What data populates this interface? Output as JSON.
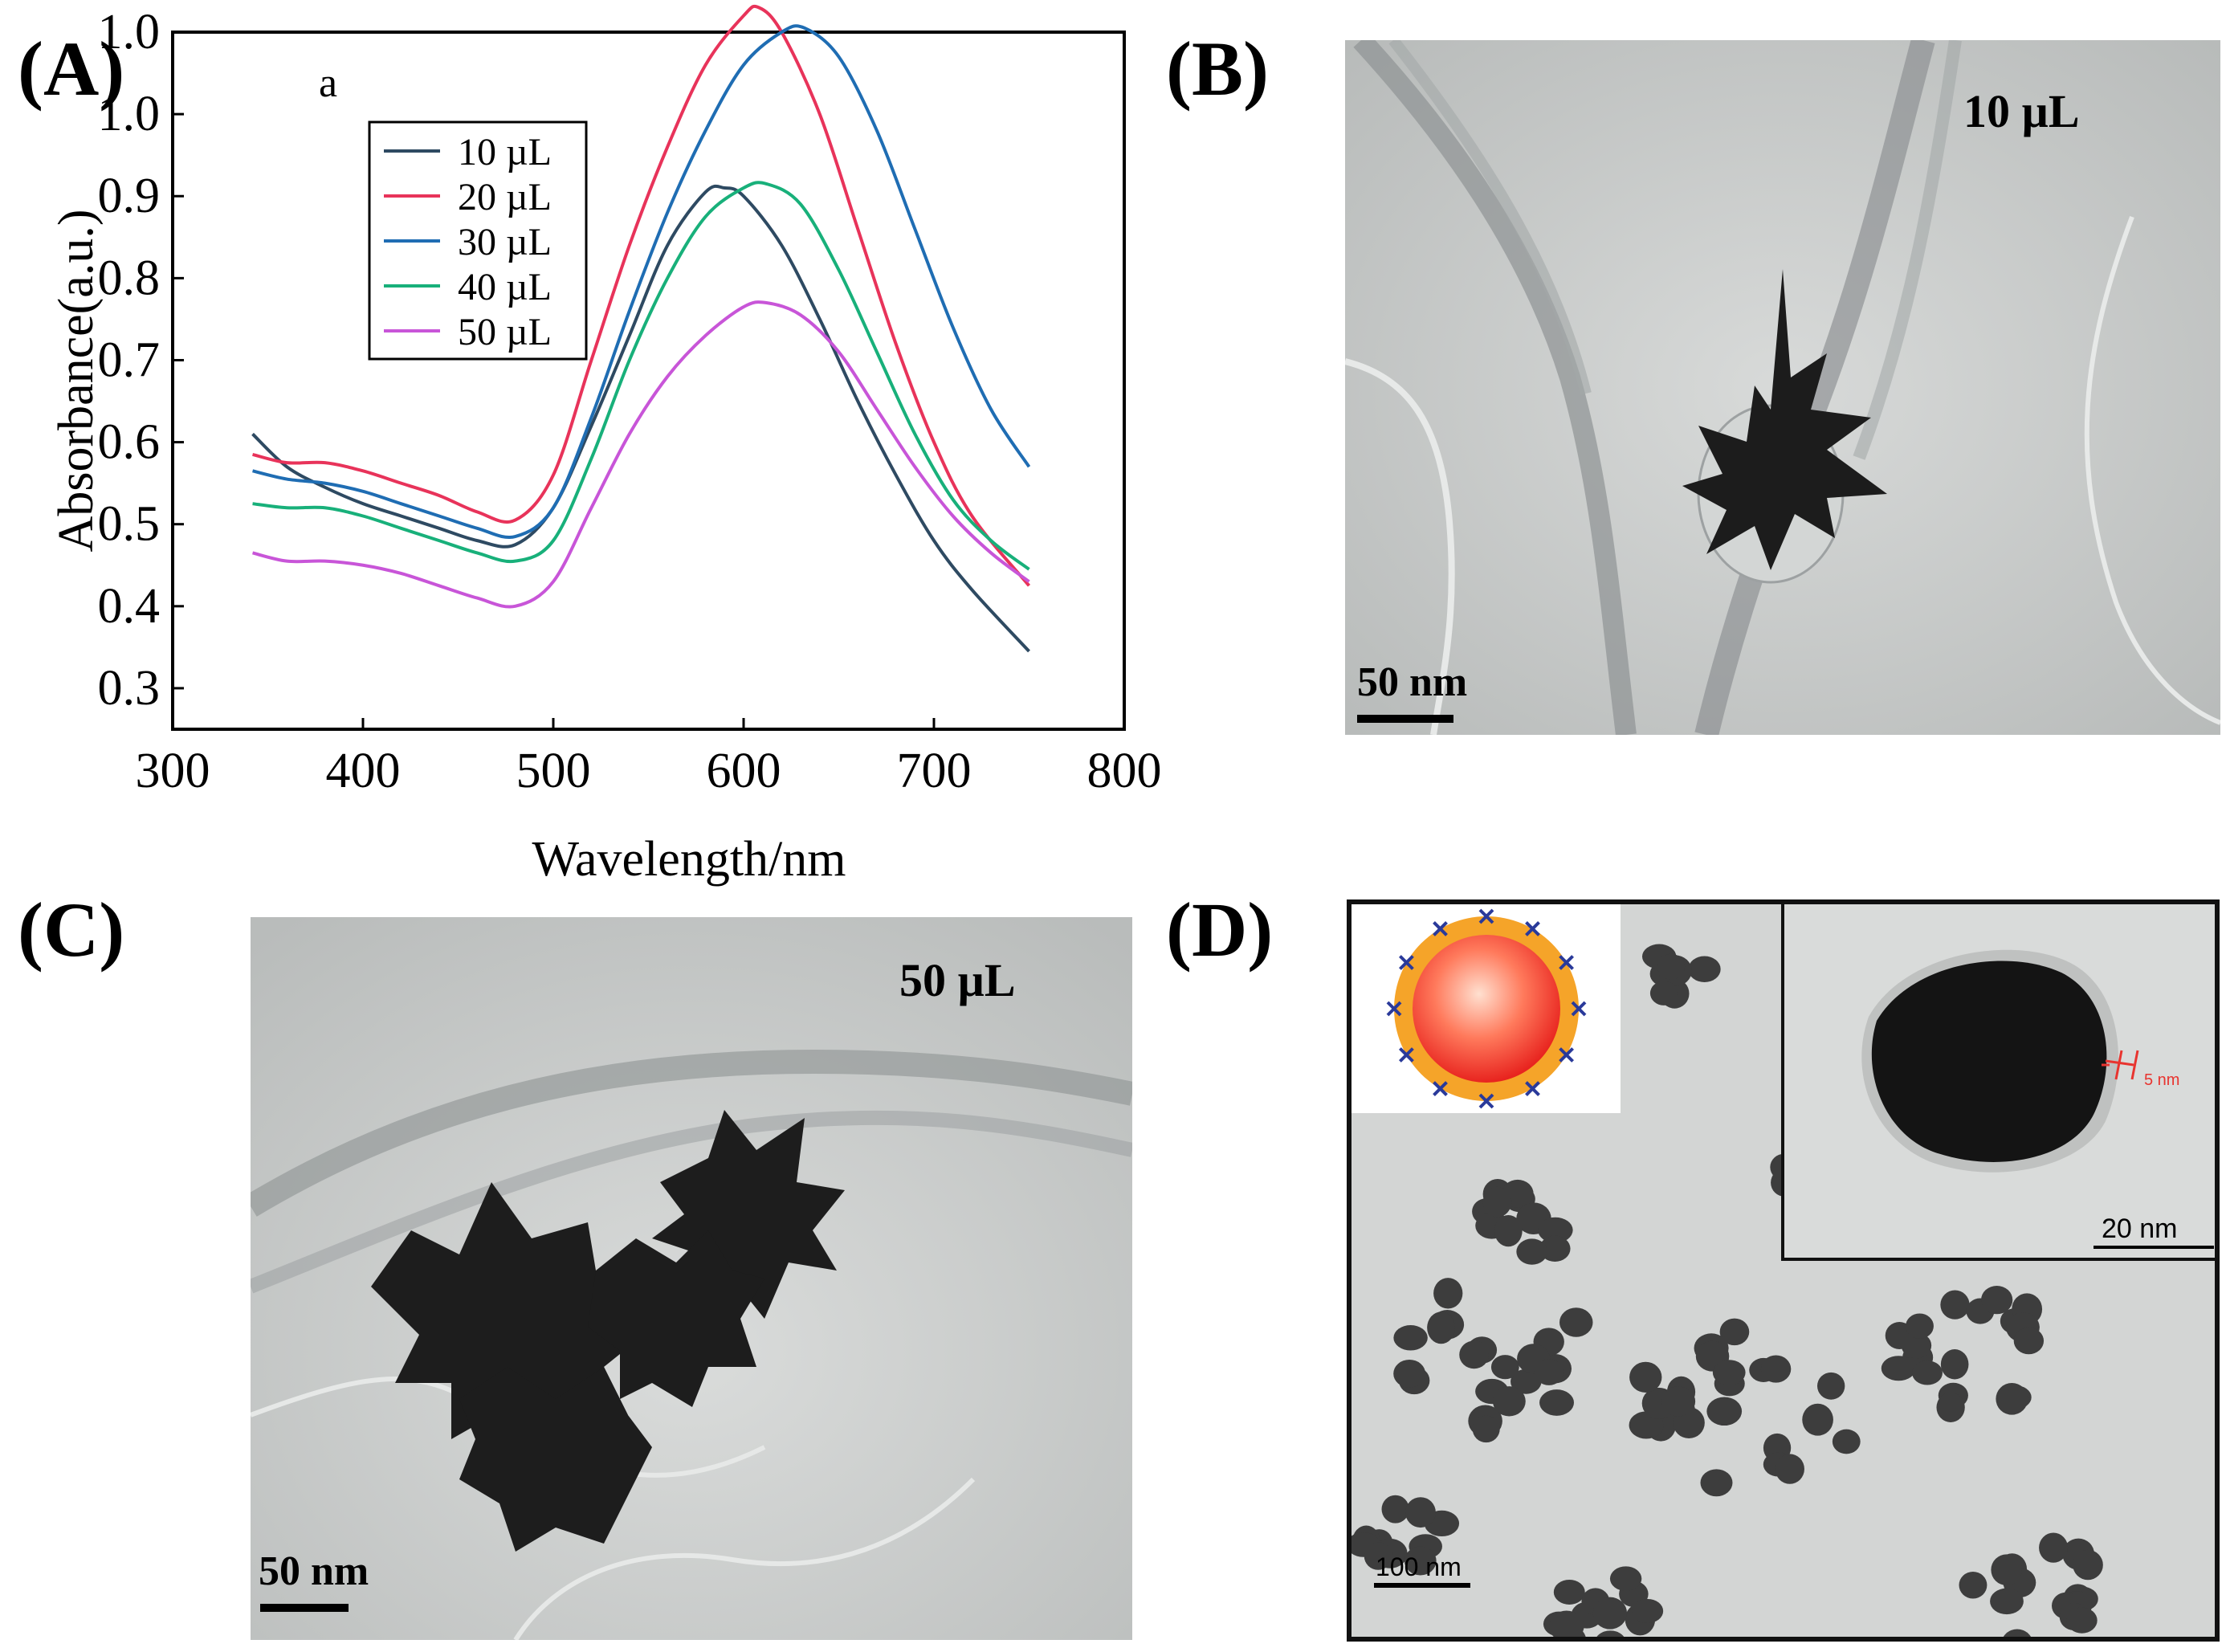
{
  "panels": {
    "a": {
      "label": "(A)"
    },
    "b": {
      "label": "(B)",
      "sample": "10 µL",
      "scale_label": "50 nm"
    },
    "c": {
      "label": "(C)",
      "sample": "50 µL",
      "scale_label": "50 nm"
    },
    "d": {
      "label": "(D)",
      "scale_main": "100 nm",
      "scale_inset": "20 nm",
      "shell_thickness": "5 nm"
    }
  },
  "chart_data": {
    "type": "line",
    "subtitle": "a",
    "xlabel": "Wavelength/nm",
    "ylabel": "Absorbance(a.u.)",
    "xlim": [
      300,
      800
    ],
    "ylim": [
      0.25,
      1.1
    ],
    "xticks": [
      "300",
      "400",
      "500",
      "600",
      "700",
      "800"
    ],
    "yticks": [
      "0.3",
      "0.4",
      "0.5",
      "0.6",
      "0.7",
      "0.8",
      "0.9",
      "1.0",
      "1.0"
    ],
    "legend_position": "top-left",
    "series": [
      {
        "name": "10 µL",
        "color": "#2e4a62",
        "x": [
          342,
          360,
          380,
          400,
          420,
          440,
          460,
          480,
          500,
          520,
          540,
          560,
          580,
          590,
          600,
          620,
          640,
          660,
          680,
          700,
          720,
          750
        ],
        "y": [
          0.61,
          0.57,
          0.545,
          0.525,
          0.51,
          0.495,
          0.48,
          0.475,
          0.52,
          0.62,
          0.73,
          0.84,
          0.905,
          0.91,
          0.9,
          0.84,
          0.75,
          0.65,
          0.56,
          0.48,
          0.42,
          0.345
        ]
      },
      {
        "name": "20 µL",
        "color": "#e8335a",
        "x": [
          342,
          360,
          380,
          400,
          420,
          440,
          460,
          480,
          500,
          520,
          540,
          560,
          580,
          600,
          608,
          620,
          640,
          660,
          680,
          700,
          720,
          750
        ],
        "y": [
          0.585,
          0.575,
          0.575,
          0.565,
          0.55,
          0.535,
          0.515,
          0.505,
          0.56,
          0.7,
          0.84,
          0.96,
          1.06,
          1.12,
          1.13,
          1.1,
          1.0,
          0.86,
          0.72,
          0.6,
          0.51,
          0.425
        ]
      },
      {
        "name": "30 µL",
        "color": "#1f6db3",
        "x": [
          342,
          360,
          380,
          400,
          420,
          440,
          460,
          480,
          500,
          520,
          540,
          560,
          580,
          600,
          620,
          632,
          650,
          670,
          690,
          710,
          730,
          750
        ],
        "y": [
          0.565,
          0.555,
          0.55,
          0.54,
          0.525,
          0.51,
          0.495,
          0.485,
          0.52,
          0.63,
          0.76,
          0.88,
          0.98,
          1.06,
          1.1,
          1.105,
          1.07,
          0.98,
          0.86,
          0.74,
          0.64,
          0.57
        ]
      },
      {
        "name": "40 µL",
        "color": "#18b07a",
        "x": [
          342,
          360,
          380,
          400,
          420,
          440,
          460,
          480,
          500,
          520,
          540,
          560,
          580,
          600,
          612,
          630,
          650,
          670,
          690,
          710,
          730,
          750
        ],
        "y": [
          0.525,
          0.52,
          0.52,
          0.51,
          0.495,
          0.48,
          0.465,
          0.455,
          0.48,
          0.58,
          0.7,
          0.8,
          0.875,
          0.91,
          0.915,
          0.89,
          0.81,
          0.71,
          0.61,
          0.53,
          0.48,
          0.445
        ]
      },
      {
        "name": "50 µL",
        "color": "#c855d8",
        "x": [
          342,
          360,
          380,
          400,
          420,
          440,
          460,
          480,
          500,
          520,
          540,
          560,
          580,
          600,
          612,
          630,
          650,
          670,
          690,
          710,
          730,
          750
        ],
        "y": [
          0.465,
          0.455,
          0.455,
          0.45,
          0.44,
          0.425,
          0.41,
          0.4,
          0.43,
          0.52,
          0.61,
          0.68,
          0.73,
          0.765,
          0.77,
          0.755,
          0.71,
          0.64,
          0.57,
          0.51,
          0.465,
          0.43
        ]
      }
    ]
  }
}
